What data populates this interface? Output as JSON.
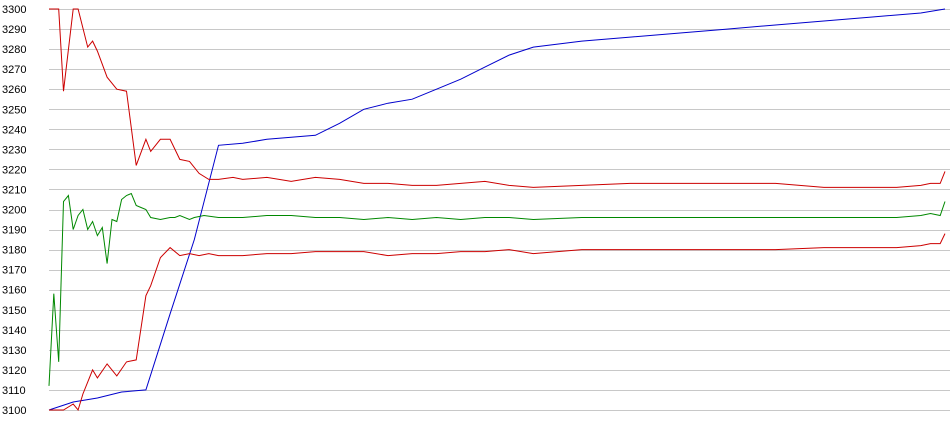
{
  "chart_data": {
    "type": "line",
    "title": "",
    "xlabel": "",
    "ylabel": "",
    "ylim": [
      3100,
      3300
    ],
    "ytick_step": 10,
    "grid": true,
    "legend": "none",
    "series": [
      {
        "color": "#0000cc",
        "x": [
          0,
          5,
          10,
          15,
          20,
          25,
          30,
          35,
          40,
          45,
          50,
          55,
          60,
          65,
          70,
          75,
          80,
          85,
          90,
          95,
          100,
          110,
          120,
          130,
          140,
          150,
          160,
          170,
          180,
          185
        ],
        "y": [
          3100,
          3104,
          3106,
          3109,
          3110,
          3148,
          3185,
          3232,
          3233,
          3235,
          3236,
          3237,
          3243,
          3250,
          3253,
          3255,
          3260,
          3265,
          3271,
          3277,
          3281,
          3284,
          3286,
          3288,
          3290,
          3292,
          3294,
          3296,
          3298,
          3300
        ]
      },
      {
        "color": "#cc0000",
        "x": [
          0,
          2,
          3,
          5,
          6,
          8,
          9,
          10,
          12,
          14,
          16,
          18,
          20,
          21,
          23,
          25,
          27,
          29,
          31,
          33,
          35,
          38,
          40,
          45,
          50,
          55,
          60,
          65,
          70,
          75,
          80,
          85,
          90,
          95,
          100,
          110,
          120,
          130,
          140,
          150,
          160,
          170,
          175,
          180,
          182,
          184,
          185
        ],
        "y": [
          3300,
          3300,
          3259,
          3300,
          3300,
          3281,
          3284,
          3279,
          3266,
          3260,
          3259,
          3222,
          3235,
          3229,
          3235,
          3235,
          3225,
          3224,
          3218,
          3215,
          3215,
          3216,
          3215,
          3216,
          3214,
          3216,
          3215,
          3213,
          3213,
          3212,
          3212,
          3213,
          3214,
          3212,
          3211,
          3212,
          3213,
          3213,
          3213,
          3213,
          3211,
          3211,
          3211,
          3212,
          3213,
          3213,
          3219
        ]
      },
      {
        "color": "#008800",
        "x": [
          0,
          1,
          2,
          3,
          4,
          5,
          6,
          7,
          8,
          9,
          10,
          11,
          12,
          13,
          14,
          15,
          16,
          17,
          18,
          19,
          20,
          21,
          23,
          25,
          26,
          27,
          29,
          30,
          32,
          35,
          40,
          45,
          50,
          55,
          60,
          65,
          70,
          75,
          80,
          85,
          90,
          95,
          100,
          110,
          120,
          130,
          140,
          150,
          160,
          170,
          175,
          180,
          182,
          184,
          185
        ],
        "y": [
          3112,
          3158,
          3124,
          3204,
          3207,
          3190,
          3197,
          3200,
          3190,
          3194,
          3187,
          3191,
          3173,
          3195,
          3194,
          3205,
          3207,
          3208,
          3202,
          3201,
          3200,
          3196,
          3195,
          3196,
          3196,
          3197,
          3195,
          3196,
          3197,
          3196,
          3196,
          3197,
          3197,
          3196,
          3196,
          3195,
          3196,
          3195,
          3196,
          3195,
          3196,
          3196,
          3195,
          3196,
          3196,
          3196,
          3196,
          3196,
          3196,
          3196,
          3196,
          3197,
          3198,
          3197,
          3204
        ]
      },
      {
        "color": "#cc0000",
        "x": [
          0,
          2,
          3,
          5,
          6,
          7,
          9,
          10,
          12,
          14,
          16,
          18,
          20,
          21,
          23,
          25,
          27,
          29,
          31,
          33,
          35,
          40,
          45,
          50,
          55,
          60,
          65,
          70,
          75,
          80,
          85,
          90,
          95,
          100,
          110,
          120,
          130,
          140,
          150,
          160,
          170,
          175,
          180,
          182,
          184,
          185
        ],
        "y": [
          3100,
          3100,
          3100,
          3103,
          3100,
          3108,
          3120,
          3116,
          3123,
          3117,
          3124,
          3125,
          3157,
          3162,
          3176,
          3181,
          3177,
          3178,
          3177,
          3178,
          3177,
          3177,
          3178,
          3178,
          3179,
          3179,
          3179,
          3177,
          3178,
          3178,
          3179,
          3179,
          3180,
          3178,
          3180,
          3180,
          3180,
          3180,
          3180,
          3181,
          3181,
          3181,
          3182,
          3183,
          3183,
          3188
        ]
      }
    ]
  }
}
